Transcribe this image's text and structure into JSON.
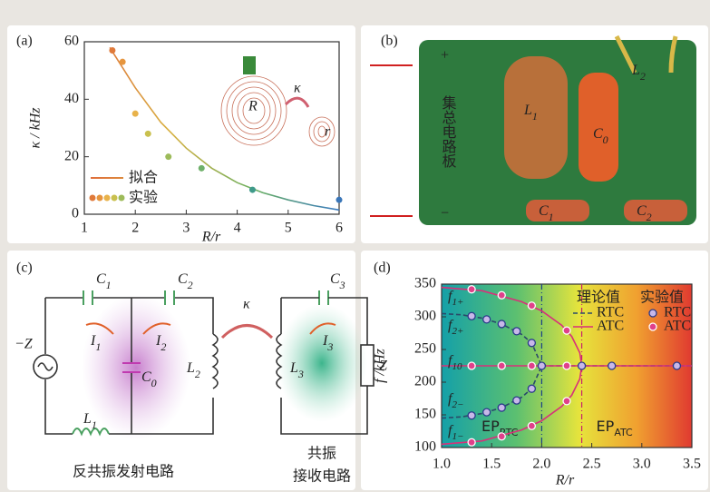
{
  "figure": {
    "panel_b": {
      "label": "(b)",
      "plus": "+",
      "minus": "−",
      "board": "集总电路板",
      "L1": {
        "main": "L",
        "sub": "1"
      },
      "L2": {
        "main": "L",
        "sub": "2"
      },
      "C0": {
        "main": "C",
        "sub": "0"
      },
      "C1": {
        "main": "C",
        "sub": "1"
      },
      "C2": {
        "main": "C",
        "sub": "2"
      }
    },
    "panel_c": {
      "label": "(c)",
      "C1": {
        "main": "C",
        "sub": "1"
      },
      "C2": {
        "main": "C",
        "sub": "2"
      },
      "C3": {
        "main": "C",
        "sub": "3"
      },
      "kappa": "κ",
      "source": "−Z",
      "I1": {
        "main": "I",
        "sub": "1"
      },
      "I2": {
        "main": "I",
        "sub": "2"
      },
      "I3": {
        "main": "I",
        "sub": "3"
      },
      "C0": {
        "main": "C",
        "sub": "0"
      },
      "L2": {
        "main": "L",
        "sub": "2"
      },
      "L3": {
        "main": "L",
        "sub": "3"
      },
      "Z": "Z",
      "L1": {
        "main": "L",
        "sub": "1"
      },
      "tx": "反共振发射电路",
      "rx1": "共振",
      "rx2": "接收电路"
    }
  },
  "chart_data": [
    {
      "type": "line",
      "panel_label": "(a)",
      "xlabel": "R/r",
      "ylabel": "κ / kHz",
      "xlim": [
        1,
        6
      ],
      "ylim": [
        0,
        60
      ],
      "xticks": [
        1,
        2,
        3,
        4,
        5,
        6
      ],
      "yticks": [
        0,
        20,
        40,
        60
      ],
      "annotations": [
        "R",
        "κ",
        "r"
      ],
      "series": [
        {
          "name": "拟合",
          "type": "line",
          "colors": [
            "#e0683a",
            "#d8b040",
            "#6ab060",
            "#3a7ac0"
          ],
          "x": [
            1.5,
            2,
            2.5,
            3,
            3.5,
            4,
            4.5,
            5,
            5.5,
            6
          ],
          "values": [
            58,
            44,
            32,
            23,
            16,
            11,
            7.5,
            5,
            3,
            1.5
          ]
        },
        {
          "name": "实验",
          "type": "scatter",
          "colors": [
            "#e07a3a",
            "#e6953e",
            "#e8b24a",
            "#c9c04e",
            "#9dbb5a",
            "#6fb06a",
            "#3f9a8a",
            "#3a76b8"
          ],
          "x": [
            1.55,
            1.75,
            2,
            2.25,
            2.65,
            3.3,
            4.3,
            6
          ],
          "values": [
            57,
            53,
            35,
            28,
            20,
            16,
            8.5,
            5
          ]
        }
      ]
    },
    {
      "type": "line",
      "panel_label": "(d)",
      "xlabel": "R/r",
      "ylabel": "f /kHz",
      "xlim": [
        1,
        3.5
      ],
      "ylim": [
        100,
        350
      ],
      "xticks": [
        {
          "value": 1,
          "label": "1.0"
        },
        1.5,
        {
          "value": 2,
          "label": "2.0"
        },
        2.5,
        {
          "value": 3,
          "label": "3.0"
        },
        3.5
      ],
      "yticks": [
        100,
        150,
        200,
        250,
        300,
        350
      ],
      "legend_titles": [
        "理论值",
        "实验值"
      ],
      "branch_labels": [
        {
          "text": "f",
          "sub": "1+"
        },
        {
          "text": "f",
          "sub": "2+"
        },
        {
          "text": "f",
          "sub": "10"
        },
        {
          "text": "f",
          "sub": "2−"
        },
        {
          "text": "f",
          "sub": "1−"
        }
      ],
      "ep_lines": [
        {
          "x": 2,
          "label": "EP",
          "sub": "RTC",
          "color": "#1c3f86"
        },
        {
          "x": 2.4,
          "label": "EP",
          "sub": "ATC",
          "color": "#c8206a"
        }
      ],
      "series": [
        {
          "name": "RTC",
          "type": "line",
          "dash": true,
          "color": "#2a4a6a",
          "x": [
            1,
            1.2,
            1.4,
            1.6,
            1.8,
            1.9,
            2,
            2,
            1,
            1.2,
            1.4,
            1.6,
            1.8,
            1.9,
            2,
            2,
            2,
            3.5
          ],
          "values": [
            305,
            303,
            298,
            289,
            273,
            260,
            225,
            null,
            145,
            147,
            152,
            161,
            177,
            190,
            225,
            null,
            225,
            225
          ]
        },
        {
          "name": "ATC",
          "type": "line",
          "dash": false,
          "color": "#d8307a",
          "x": [
            1,
            1.4,
            1.8,
            2,
            2.2,
            2.3,
            2.38,
            2.4,
            2.4,
            1,
            1.4,
            1.8,
            2,
            2.2,
            2.3,
            2.38,
            2.4,
            2.4,
            1,
            3.5
          ],
          "values": [
            345,
            340,
            323,
            309,
            287,
            270,
            245,
            225,
            null,
            105,
            110,
            127,
            141,
            163,
            180,
            205,
            225,
            null,
            225,
            225
          ]
        },
        {
          "name": "RTC",
          "type": "scatter",
          "color": "#2a3a8a",
          "fill": "#c8b8e8",
          "x": [
            1.3,
            1.45,
            1.6,
            1.75,
            1.9,
            1.3,
            1.45,
            1.6,
            1.75,
            1.9,
            2,
            2.4,
            2.7,
            3.35
          ],
          "values": [
            301,
            296,
            289,
            278,
            260,
            149,
            154,
            161,
            172,
            190,
            225,
            225,
            225,
            225
          ]
        },
        {
          "name": "ATC",
          "type": "scatter",
          "color": "#ffffff",
          "fill": "#e0408a",
          "x": [
            1.3,
            1.6,
            1.9,
            2.25,
            1.3,
            1.6,
            1.9,
            2.25,
            1.3,
            1.6,
            1.9,
            2.25
          ],
          "values": [
            342,
            333,
            317,
            279,
            225,
            225,
            225,
            225,
            108,
            117,
            133,
            171
          ]
        }
      ]
    }
  ]
}
